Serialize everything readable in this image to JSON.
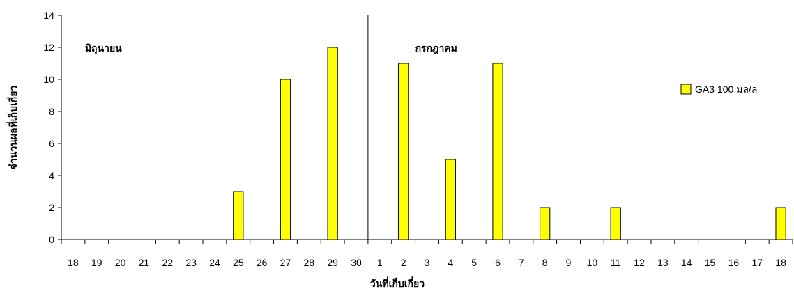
{
  "chart_data": {
    "type": "bar",
    "xlabel": "วันที่เก็บเกี่ยว",
    "ylabel": "จำนวนผลที่เก็บเกี่ยว",
    "ylim": [
      0,
      14
    ],
    "yticks": [
      0,
      2,
      4,
      6,
      8,
      10,
      12,
      14
    ],
    "grid": false,
    "legend_position": "top-right",
    "categories": [
      "18",
      "19",
      "20",
      "21",
      "22",
      "23",
      "24",
      "25",
      "26",
      "27",
      "28",
      "29",
      "30",
      "1",
      "2",
      "3",
      "4",
      "5",
      "6",
      "7",
      "8",
      "9",
      "10",
      "11",
      "12",
      "13",
      "14",
      "15",
      "16",
      "17",
      "18"
    ],
    "series": [
      {
        "name": "GA3 100 มล/ล",
        "color": "#ffff00",
        "values": [
          0,
          0,
          0,
          0,
          0,
          0,
          0,
          3,
          0,
          10,
          0,
          12,
          0,
          0,
          11,
          0,
          5,
          0,
          11,
          0,
          2,
          0,
          0,
          2,
          0,
          0,
          0,
          0,
          0,
          0,
          2
        ]
      }
    ],
    "annotations": [
      {
        "text": "มิถุนายน",
        "category_index": 1
      },
      {
        "text": "กรกฎาคม",
        "category_index": 15
      }
    ],
    "separator_before_index": 13
  }
}
